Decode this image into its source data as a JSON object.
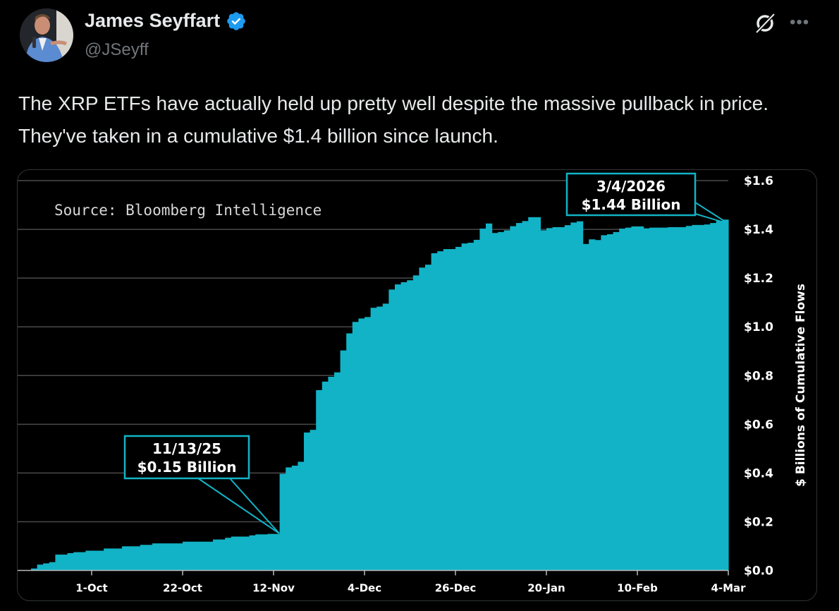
{
  "author": {
    "name": "James Seyffart",
    "handle": "@JSeyff",
    "verified": true,
    "verified_color": "#1d9bf0"
  },
  "header_icons": [
    "grok-icon",
    "more-icon"
  ],
  "more_label": "•••",
  "post": {
    "text": "The XRP ETFs have actually held up pretty well despite the massive pullback in price. They've taken in a cumulative $1.4 billion since launch."
  },
  "chart_data": {
    "type": "area",
    "source": "Source: Bloomberg Intelligence",
    "ylabel": "$ Billions of Cumulative Flows",
    "xlabel": "",
    "ylim": [
      0,
      1.6
    ],
    "y_ticks": [
      "$0.0",
      "$0.2",
      "$0.4",
      "$0.6",
      "$0.8",
      "$1.0",
      "$1.2",
      "$1.4",
      "$1.6"
    ],
    "y_tick_values": [
      0,
      0.2,
      0.4,
      0.6,
      0.8,
      1.0,
      1.2,
      1.4,
      1.6
    ],
    "x_ticks": [
      {
        "label": "1-Oct",
        "trading_day": 10
      },
      {
        "label": "22-Oct",
        "trading_day": 25
      },
      {
        "label": "12-Nov",
        "trading_day": 40
      },
      {
        "label": "4-Dec",
        "trading_day": 55
      },
      {
        "label": "26-Dec",
        "trading_day": 70
      },
      {
        "label": "20-Jan",
        "trading_day": 85
      },
      {
        "label": "10-Feb",
        "trading_day": 100
      },
      {
        "label": "4-Mar",
        "trading_day": 115
      }
    ],
    "grid": true,
    "color": "#12b3c6",
    "values": [
      0.008,
      0.024,
      0.029,
      0.034,
      0.065,
      0.065,
      0.071,
      0.075,
      0.075,
      0.081,
      0.081,
      0.081,
      0.09,
      0.09,
      0.09,
      0.099,
      0.099,
      0.099,
      0.105,
      0.105,
      0.111,
      0.111,
      0.111,
      0.111,
      0.111,
      0.118,
      0.118,
      0.118,
      0.118,
      0.118,
      0.127,
      0.127,
      0.134,
      0.139,
      0.139,
      0.139,
      0.144,
      0.148,
      0.148,
      0.15,
      0.15,
      0.397,
      0.423,
      0.43,
      0.446,
      0.566,
      0.577,
      0.74,
      0.775,
      0.795,
      0.813,
      0.903,
      0.973,
      1.02,
      1.034,
      1.04,
      1.078,
      1.083,
      1.095,
      1.153,
      1.174,
      1.183,
      1.191,
      1.211,
      1.243,
      1.255,
      1.302,
      1.31,
      1.319,
      1.319,
      1.328,
      1.342,
      1.345,
      1.357,
      1.403,
      1.424,
      1.385,
      1.389,
      1.396,
      1.413,
      1.426,
      1.434,
      1.45,
      1.45,
      1.396,
      1.405,
      1.409,
      1.409,
      1.417,
      1.428,
      1.433,
      1.34,
      1.359,
      1.356,
      1.376,
      1.38,
      1.389,
      1.403,
      1.407,
      1.412,
      1.412,
      1.404,
      1.407,
      1.407,
      1.407,
      1.409,
      1.409,
      1.409,
      1.414,
      1.418,
      1.418,
      1.42,
      1.426,
      1.435,
      1.44
    ],
    "annotations": [
      {
        "date": "11/13/25",
        "value_label": "$0.15 Billion",
        "value": 0.15,
        "trading_day": 40
      },
      {
        "date": "3/4/2026",
        "value_label": "$1.44 Billion",
        "value": 1.44,
        "trading_day": 114
      }
    ]
  }
}
